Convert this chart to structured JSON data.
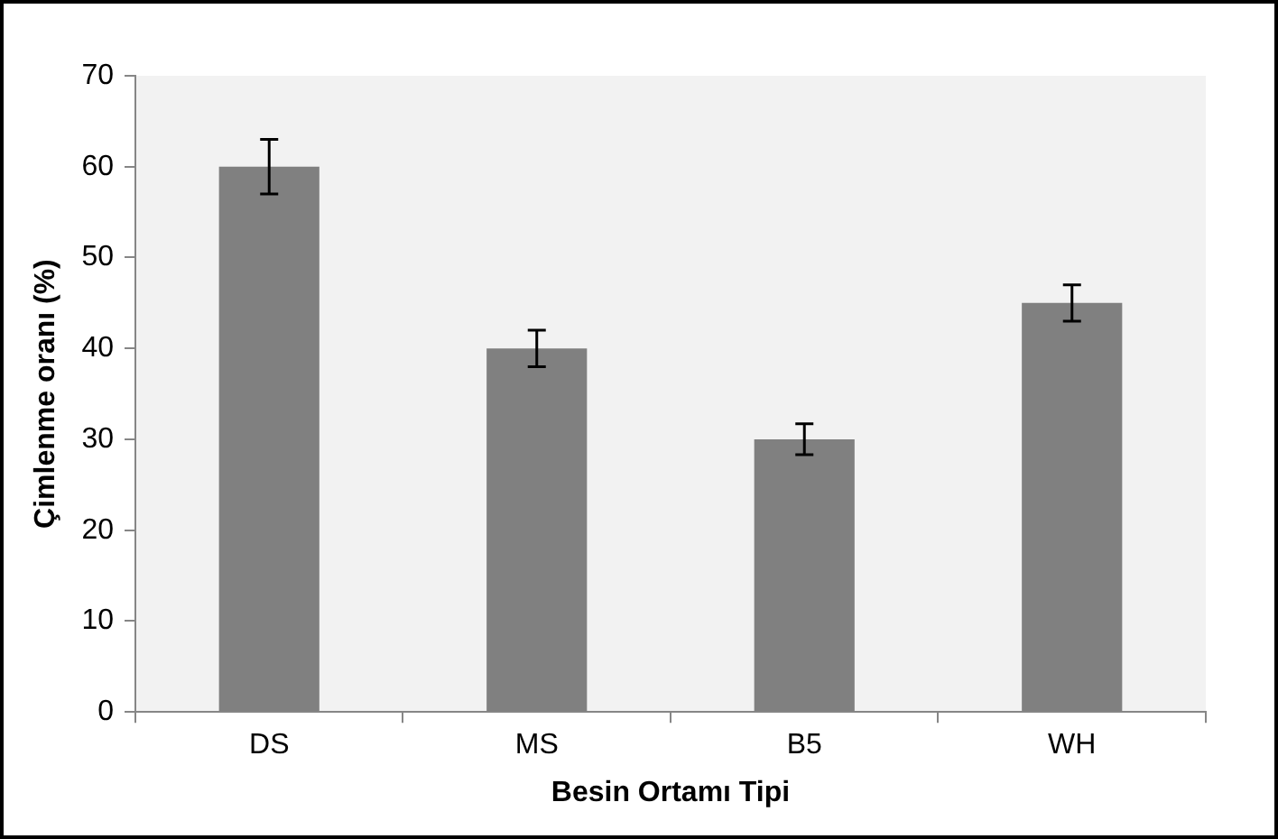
{
  "chart_data": {
    "type": "bar",
    "xlabel": "Besin Ortamı Tipi",
    "ylabel": "Çimlenme oranı (%)",
    "categories": [
      "DS",
      "MS",
      "B5",
      "WH"
    ],
    "values": [
      60,
      40,
      30,
      45
    ],
    "errors": [
      3,
      2,
      1.7,
      2
    ],
    "color": "#808080",
    "ylim": [
      0,
      70
    ],
    "yticks": [
      0,
      10,
      20,
      30,
      40,
      50,
      60,
      70
    ],
    "grid": false,
    "legend": false
  }
}
